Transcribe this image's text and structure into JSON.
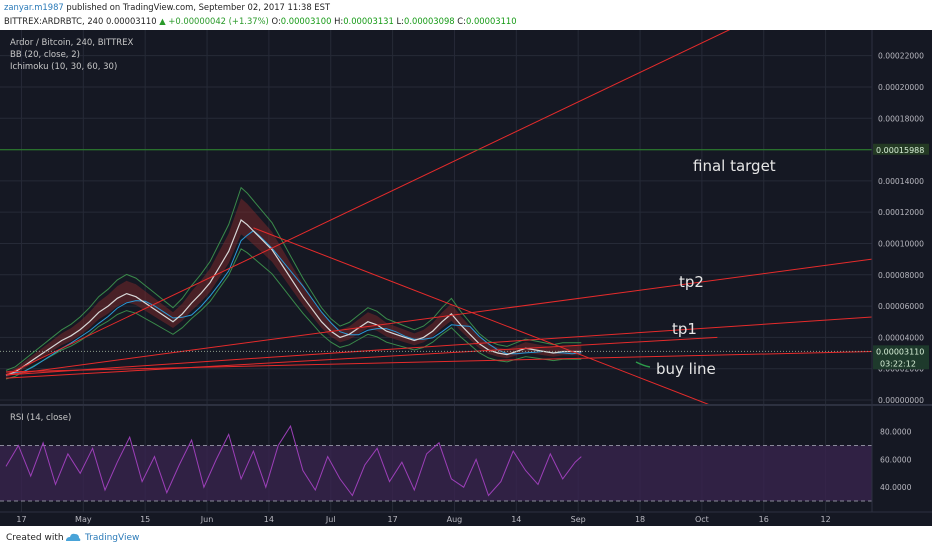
{
  "header": {
    "user": "zanyar.m1987",
    "published": "published on TradingView.com, September 02, 2017 11:38 EST",
    "symbol_line": "BITTREX:ARDRBTC, 240  0.00003110",
    "change": "▲ +0.00000042 (+1.37%)",
    "o_label": "O:",
    "o_value": "0.00003100",
    "h_label": "H:",
    "h_value": "0.00003131",
    "l_label": "L:",
    "l_value": "0.00003098",
    "c_label": "C:",
    "c_value": "0.00003110"
  },
  "legend": {
    "title": "Ardor / Bitcoin, 240, BITTREX",
    "bb": "BB (20, close, 2)",
    "ichimoku": "Ichimoku (10, 30, 60, 30)",
    "rsi": "RSI (14, close)"
  },
  "annotations": {
    "final_target": "final target",
    "tp2": "tp2",
    "tp1": "tp1",
    "buy_line": "buy line"
  },
  "price_axis": {
    "ticks": [
      "0.00022000",
      "0.00020000",
      "0.00018000",
      "0.00016000",
      "0.00014000",
      "0.00012000",
      "0.00010000",
      "0.00008000",
      "0.00006000",
      "0.00004000",
      "0.00002000",
      "0.00000000"
    ],
    "current_price": "0.00003110",
    "target_price": "0.00015988",
    "countdown": "03:22:12"
  },
  "rsi_axis": {
    "ticks": [
      "80.0000",
      "60.0000",
      "40.0000"
    ]
  },
  "time_axis": {
    "ticks": [
      "17",
      "May",
      "15",
      "Jun",
      "14",
      "Jul",
      "17",
      "Aug",
      "14",
      "Sep",
      "18",
      "Oct",
      "16",
      "12"
    ]
  },
  "footer": {
    "created": "Created with",
    "brand": "TradingView"
  },
  "colors": {
    "background": "#151823",
    "trendline": "#e52b2b",
    "target_line": "#2c8a2c",
    "rsi_line": "#9c3fb8",
    "rsi_band": "#3a2450",
    "price_label": "#243a24"
  },
  "chart_data": {
    "type": "line",
    "title": "Ardor / Bitcoin, 240, BITTREX",
    "ylim": [
      0,
      0.00023
    ],
    "rsi_ylim": [
      25,
      92
    ],
    "rsi_bands": [
      30,
      70
    ],
    "price": {
      "name": "ARDRBTC",
      "t": [
        0,
        3,
        6,
        9,
        12,
        15,
        18,
        21,
        24,
        27,
        30,
        33,
        36,
        39,
        42,
        45,
        48,
        51,
        54,
        57,
        60,
        63,
        66,
        69,
        72,
        74,
        76,
        78,
        80,
        82,
        84,
        86,
        88,
        90,
        93,
        96,
        99,
        102,
        105,
        108,
        111,
        114,
        117,
        120,
        123,
        126,
        129,
        132,
        135,
        138,
        141,
        144,
        147,
        150,
        153,
        156,
        159,
        162,
        165,
        168,
        171,
        174,
        177,
        180,
        183,
        186
      ],
      "values": [
        1.6e-05,
        1.8e-05,
        2.2e-05,
        2.6e-05,
        3e-05,
        3.4e-05,
        3.8e-05,
        4.1e-05,
        4.5e-05,
        5e-05,
        5.6e-05,
        6e-05,
        6.5e-05,
        6.8e-05,
        6.6e-05,
        6.2e-05,
        5.8e-05,
        5.4e-05,
        5e-05,
        5.5e-05,
        6.2e-05,
        6.8e-05,
        7.5e-05,
        8.5e-05,
        9.5e-05,
        0.000105,
        0.000115,
        0.000112,
        0.000108,
        0.000104,
        0.0001,
        9.6e-05,
        9e-05,
        8.4e-05,
        7.5e-05,
        6.6e-05,
        5.8e-05,
        5e-05,
        4.4e-05,
        4e-05,
        4.2e-05,
        4.6e-05,
        5e-05,
        4.8e-05,
        4.4e-05,
        4.2e-05,
        4e-05,
        3.8e-05,
        4e-05,
        4.4e-05,
        5e-05,
        5.5e-05,
        4.8e-05,
        4.2e-05,
        3.6e-05,
        3.2e-05,
        3e-05,
        2.9e-05,
        3.1e-05,
        3.3e-05,
        3.2e-05,
        3.1e-05,
        3e-05,
        3.1e-05,
        3.1e-05,
        3.1e-05
      ]
    },
    "rsi": {
      "name": "RSI (14, close)",
      "t": [
        0,
        4,
        8,
        12,
        16,
        20,
        24,
        28,
        32,
        36,
        40,
        44,
        48,
        52,
        56,
        60,
        64,
        68,
        72,
        76,
        80,
        84,
        88,
        92,
        96,
        100,
        104,
        108,
        112,
        116,
        120,
        124,
        128,
        132,
        136,
        140,
        144,
        148,
        152,
        156,
        160,
        164,
        168,
        172,
        176,
        180,
        184,
        186
      ],
      "values": [
        55,
        70,
        48,
        72,
        42,
        64,
        50,
        68,
        38,
        58,
        76,
        44,
        62,
        36,
        56,
        74,
        40,
        60,
        78,
        46,
        66,
        40,
        70,
        84,
        52,
        38,
        62,
        46,
        34,
        56,
        68,
        44,
        58,
        38,
        64,
        72,
        46,
        40,
        60,
        34,
        44,
        66,
        52,
        42,
        64,
        46,
        58,
        62
      ]
    },
    "trendlines": [
      {
        "name": "main ascending support-to-target",
        "from": [
          0,
          1.6e-05
        ],
        "to": [
          280,
          0.00028
        ]
      },
      {
        "name": "tp2 line",
        "from": [
          0,
          1.6e-05
        ],
        "to": [
          280,
          9e-05
        ]
      },
      {
        "name": "tp1 line",
        "from": [
          0,
          1.6e-05
        ],
        "to": [
          280,
          5.3e-05
        ]
      },
      {
        "name": "buy line",
        "from": [
          0,
          1.8e-05
        ],
        "to": [
          280,
          3.1e-05
        ]
      },
      {
        "name": "descending resistance",
        "from": [
          80,
          0.00011
        ],
        "to": [
          230,
          -5e-06
        ]
      },
      {
        "name": "lower support",
        "from": [
          0,
          1.4e-05
        ],
        "to": [
          230,
          4e-05
        ]
      }
    ],
    "final_target": 0.00015988
  }
}
